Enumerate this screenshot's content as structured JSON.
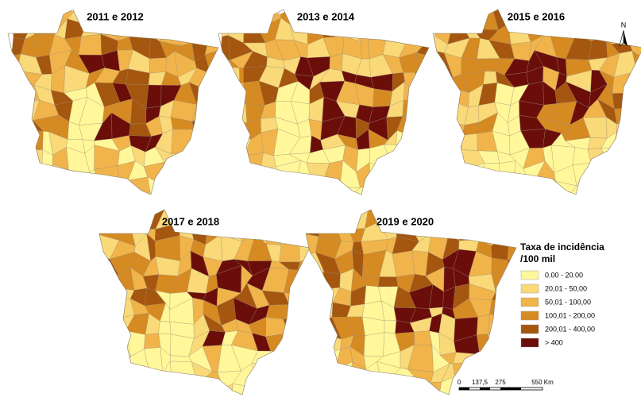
{
  "panels": [
    {
      "title": "2011 e 2012"
    },
    {
      "title": "2013 e 2014"
    },
    {
      "title": "2015 e 2016"
    },
    {
      "title": "2017 e 2018"
    },
    {
      "title": "2019 e 2020"
    }
  ],
  "legend": {
    "title": [
      "Taxa de incidência",
      "/100 mil"
    ],
    "items": [
      {
        "label": "0.00 - 20.00",
        "color": "#fff799"
      },
      {
        "label": "20,01 - 50,00",
        "color": "#f9d978"
      },
      {
        "label": "50,01 - 100,00",
        "color": "#f0b44a"
      },
      {
        "label": "100,01 - 200,00",
        "color": "#d68a22"
      },
      {
        "label": "200,01 - 400,00",
        "color": "#a5560f"
      },
      {
        "label": "> 400",
        "color": "#6b0e0a"
      }
    ]
  },
  "scale_bar": {
    "labels": [
      "0",
      "137,5",
      "275",
      "550 Km"
    ]
  },
  "north_arrow": {
    "label": "N"
  }
}
